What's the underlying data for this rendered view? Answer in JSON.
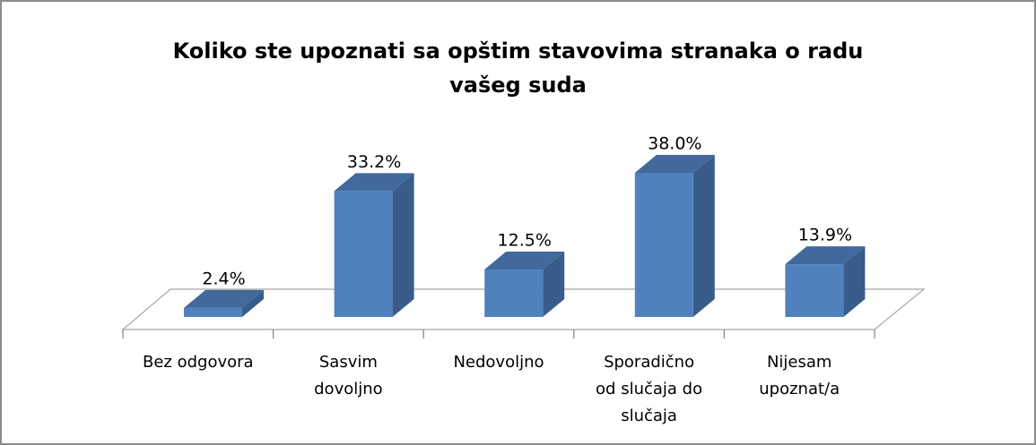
{
  "chart_data": {
    "type": "bar3d",
    "title": "Koliko ste upoznati sa opštim stavovima stranaka o radu vašeg suda",
    "categories": [
      "Bez odgovora",
      "Sasvim dovoljno",
      "Nedovoljno",
      "Sporadično od slučaja do slučaja",
      "Nijesam upoznat/a"
    ],
    "values": [
      2.4,
      33.2,
      12.5,
      38.0,
      13.9
    ],
    "value_labels": [
      "2.4%",
      "33.2%",
      "12.5%",
      "38.0%",
      "13.9%"
    ],
    "color": "#4f81bd"
  }
}
